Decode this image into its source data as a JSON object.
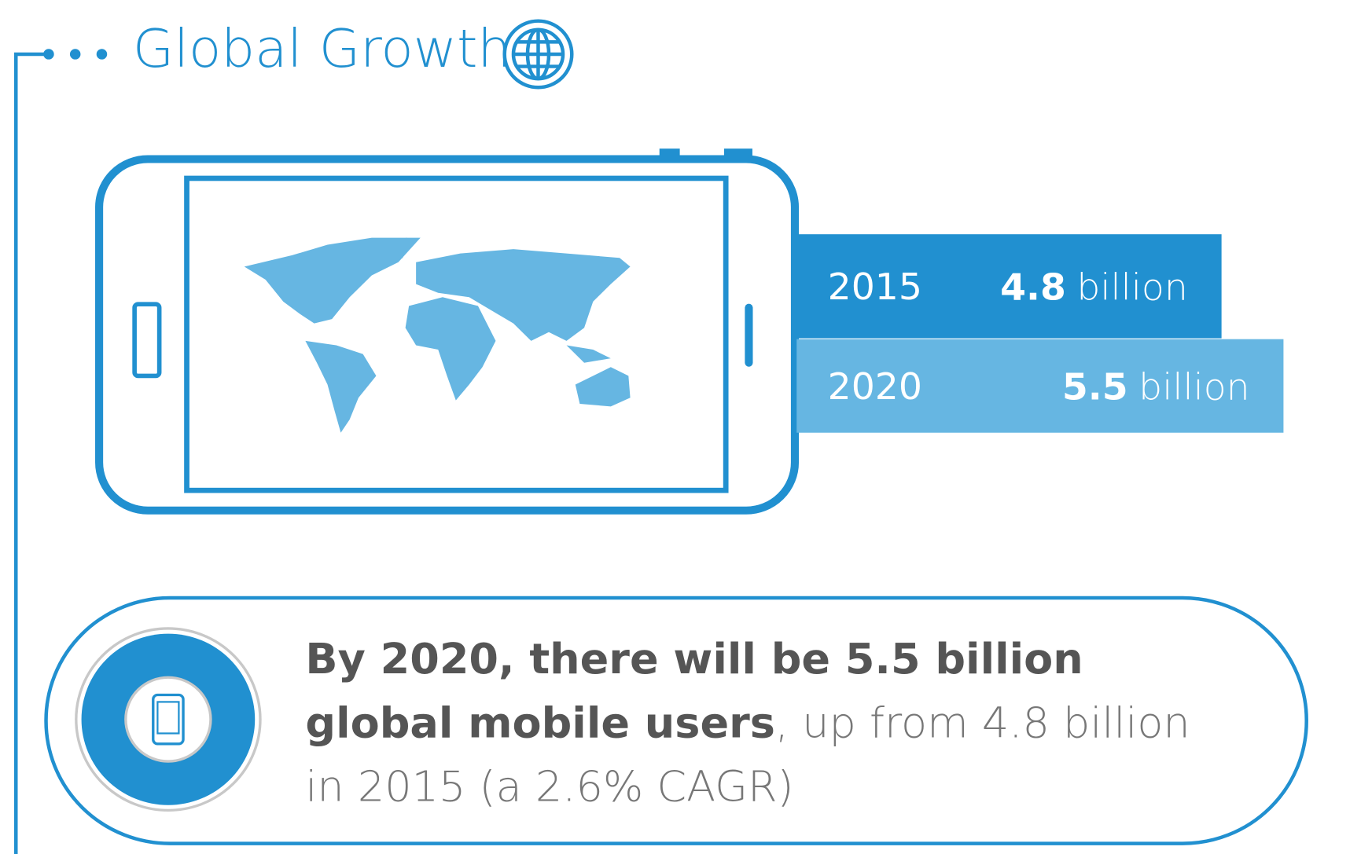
{
  "header": {
    "title": "Global Growth"
  },
  "chart_data": {
    "type": "bar",
    "categories": [
      "2015",
      "2020"
    ],
    "values": [
      4.8,
      5.5
    ],
    "unit": "billion",
    "colors": [
      "#2190d0",
      "#66b6e2"
    ]
  },
  "callout": {
    "line1": "By 2020, there will be 5.5 billion",
    "line2_bold": "global mobile users",
    "line2_rest": ", up from 4.8 billion",
    "line3": "in 2015 (a 2.6% CAGR)"
  }
}
